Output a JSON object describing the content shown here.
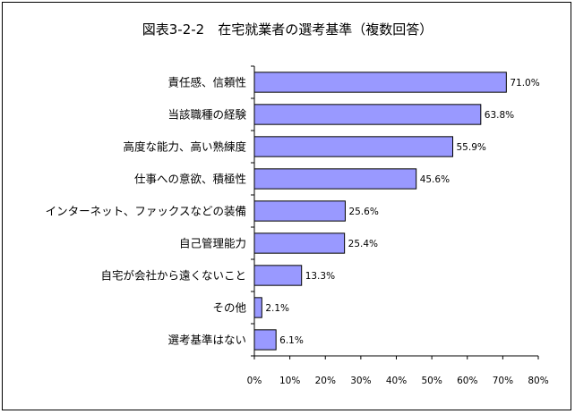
{
  "chart_data": {
    "type": "bar",
    "orientation": "horizontal",
    "title": "図表3-2-2　在宅就業者の選考基準（複数回答）",
    "categories": [
      "責任感、信頼性",
      "当該職種の経験",
      "高度な能力、高い熟練度",
      "仕事への意欲、積極性",
      "インターネット、ファックスなどの装備",
      "自己管理能力",
      "自宅が会社から遠くないこと",
      "その他",
      "選考基準はない"
    ],
    "values": [
      71.0,
      63.8,
      55.9,
      45.6,
      25.6,
      25.4,
      13.3,
      2.1,
      6.1
    ],
    "data_labels": [
      "71.0%",
      "63.8%",
      "55.9%",
      "45.6%",
      "25.6%",
      "25.4%",
      "13.3%",
      "2.1%",
      "6.1%"
    ],
    "xlim": [
      0,
      80
    ],
    "xticks": [
      "0%",
      "10%",
      "20%",
      "30%",
      "40%",
      "50%",
      "60%",
      "70%",
      "80%"
    ],
    "grid": false,
    "legend": "none",
    "colors": {
      "bar_fill": "#9999ff",
      "bar_stroke": "#000000",
      "text": "#000000",
      "background": "#ffffff"
    }
  }
}
